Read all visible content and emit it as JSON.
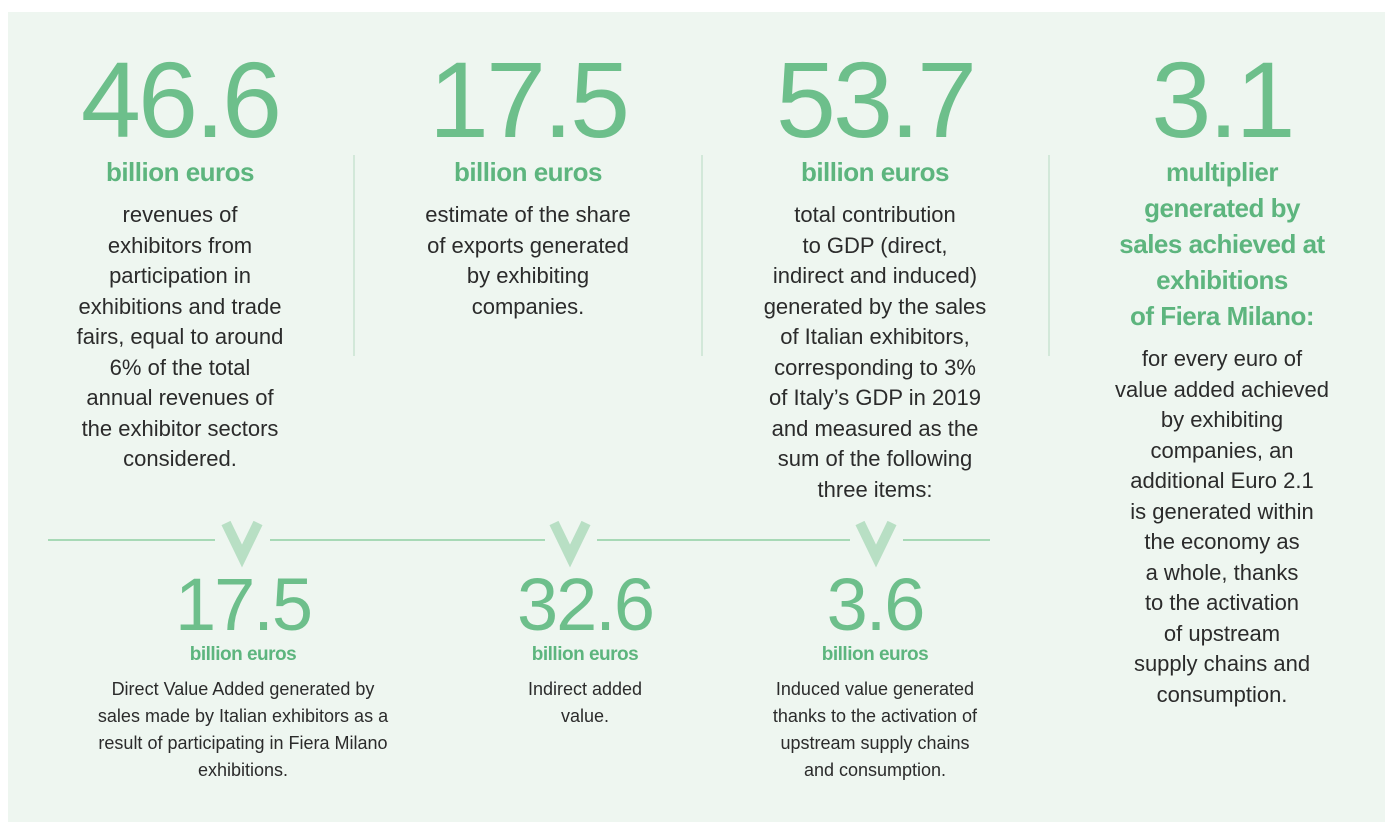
{
  "top": [
    {
      "value": 46.6,
      "label": [
        "billion euros"
      ],
      "description": [
        "revenues of",
        "exhibitors from",
        "participation in",
        "exhibitions and trade",
        "fairs, equal to around",
        "6% of the total",
        "annual revenues of",
        "the exhibitor sectors",
        "considered."
      ]
    },
    {
      "value": 17.5,
      "label": [
        "billion euros"
      ],
      "description": [
        "estimate of the share",
        "of exports generated",
        "by exhibiting",
        "companies."
      ]
    },
    {
      "value": 53.7,
      "label": [
        "billion euros"
      ],
      "description": [
        "total contribution",
        "to GDP (direct,",
        "indirect and induced)",
        "generated by the sales",
        "of Italian exhibitors,",
        "corresponding to 3%",
        "of Italy’s GDP in 2019",
        "and measured as the",
        "sum of the following",
        "three items:"
      ]
    },
    {
      "value": 3.1,
      "label": [
        "multiplier",
        "generated by",
        "sales achieved at",
        "exhibitions",
        "of Fiera Milano:"
      ],
      "description": [
        "for every euro of",
        "value added achieved",
        "by exhibiting",
        "companies, an",
        "additional Euro 2.1",
        "is generated within",
        "the economy as",
        "a whole, thanks",
        "to the activation",
        "of upstream",
        "supply chains and",
        "consumption."
      ]
    }
  ],
  "bottom": [
    {
      "value": 17.5,
      "label": [
        "billion euros"
      ],
      "description": [
        "Direct Value Added generated by",
        "sales made by Italian exhibitors as a",
        "result of participating in Fiera Milano",
        "exhibitions."
      ]
    },
    {
      "value": 32.6,
      "label": [
        "billion euros"
      ],
      "description": [
        "Indirect added",
        "value."
      ]
    },
    {
      "value": 3.6,
      "label": [
        "billion euros"
      ],
      "description": [
        "Induced value generated",
        "thanks to the activation of",
        "upstream supply chains",
        "and consumption."
      ]
    }
  ]
}
